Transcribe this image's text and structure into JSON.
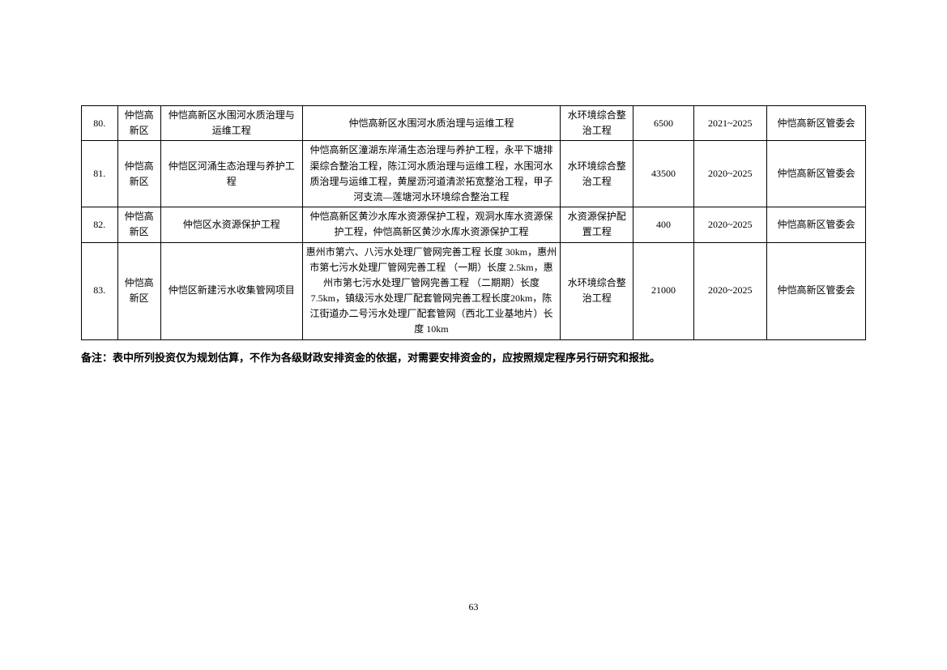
{
  "table": {
    "columns": [
      {
        "key": "num",
        "class": "col-num"
      },
      {
        "key": "district",
        "class": "col-district"
      },
      {
        "key": "project_name",
        "class": "col-project-name"
      },
      {
        "key": "description",
        "class": "col-description"
      },
      {
        "key": "type",
        "class": "col-type"
      },
      {
        "key": "investment",
        "class": "col-investment"
      },
      {
        "key": "period",
        "class": "col-period"
      },
      {
        "key": "owner",
        "class": "col-owner"
      }
    ],
    "rows": [
      {
        "num": "80.",
        "district": "仲恺高新区",
        "project_name": "仲恺高新区水围河水质治理与运维工程",
        "description": "仲恺高新区水围河水质治理与运维工程",
        "type": "水环境综合整治工程",
        "investment": "6500",
        "period": "2021~2025",
        "owner": "仲恺高新区管委会"
      },
      {
        "num": "81.",
        "district": "仲恺高新区",
        "project_name": "仲恺区河涌生态治理与养护工程",
        "description": "仲恺高新区潼湖东岸涌生态治理与养护工程，永平下塘排渠综合整治工程，陈江河水质治理与运维工程，水围河水质治理与运维工程，黄屋沥河道清淤拓宽整治工程，甲子河支流—莲塘河水环境综合整治工程",
        "type": "水环境综合整治工程",
        "investment": "43500",
        "period": "2020~2025",
        "owner": "仲恺高新区管委会"
      },
      {
        "num": "82.",
        "district": "仲恺高新区",
        "project_name": "仲恺区水资源保护工程",
        "description": "仲恺高新区黄沙水库水资源保护工程，观洞水库水资源保护工程，仲恺高新区黄沙水库水资源保护工程",
        "type": "水资源保护配置工程",
        "investment": "400",
        "period": "2020~2025",
        "owner": "仲恺高新区管委会"
      },
      {
        "num": "83.",
        "district": "仲恺高新区",
        "project_name": "仲恺区新建污水收集管网项目",
        "description": "惠州市第六、八污水处理厂管网完善工程 长度 30km，惠州市第七污水处理厂管网完善工程 （一期）长度 2.5km，惠州市第七污水处理厂管网完善工程 （二期期）长度 7.5km，镇级污水处理厂配套管网完善工程长度20km，陈江街道办二号污水处理厂配套管网（西北工业基地片）长度 10km",
        "type": "水环境综合整治工程",
        "investment": "21000",
        "period": "2020~2025",
        "owner": "仲恺高新区管委会"
      }
    ]
  },
  "note_text": "备注：表中所列投资仅为规划估算，不作为各级财政安排资金的依据，对需要安排资金的，应按照规定程序另行研究和报批。",
  "page_number": "63"
}
